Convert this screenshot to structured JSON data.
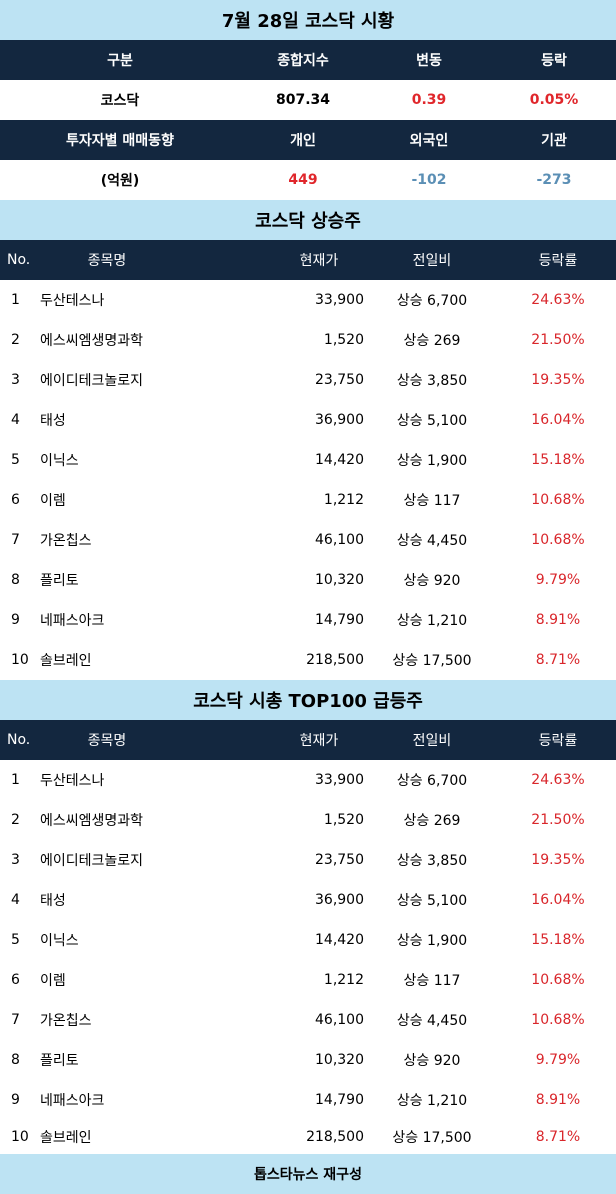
{
  "header": {
    "title": "7월 28일 코스닥 시황"
  },
  "summary": {
    "head": [
      "구분",
      "종합지수",
      "변동",
      "등락"
    ],
    "row": [
      "코스닥",
      "807.34",
      "0.39",
      "0.05%"
    ],
    "investor_head": [
      "투자자별 매매동향",
      "개인",
      "외국인",
      "기관"
    ],
    "investor_row": [
      "(억원)",
      "449",
      "-102",
      "-273"
    ]
  },
  "section1": {
    "title": "코스닥 상승주",
    "head": [
      "No.",
      "종목명",
      "현재가",
      "전일비",
      "등락률"
    ],
    "rows": [
      {
        "no": "1",
        "name": "두산테스나",
        "price": "33,900",
        "diff": "상승 6,700",
        "rate": "24.63%"
      },
      {
        "no": "2",
        "name": "에스씨엠생명과학",
        "price": "1,520",
        "diff": "상승 269",
        "rate": "21.50%"
      },
      {
        "no": "3",
        "name": "에이디테크놀로지",
        "price": "23,750",
        "diff": "상승 3,850",
        "rate": "19.35%"
      },
      {
        "no": "4",
        "name": "태성",
        "price": "36,900",
        "diff": "상승 5,100",
        "rate": "16.04%"
      },
      {
        "no": "5",
        "name": "이닉스",
        "price": "14,420",
        "diff": "상승 1,900",
        "rate": "15.18%"
      },
      {
        "no": "6",
        "name": "이렘",
        "price": "1,212",
        "diff": "상승 117",
        "rate": "10.68%"
      },
      {
        "no": "7",
        "name": "가온칩스",
        "price": "46,100",
        "diff": "상승 4,450",
        "rate": "10.68%"
      },
      {
        "no": "8",
        "name": "플리토",
        "price": "10,320",
        "diff": "상승 920",
        "rate": "9.79%"
      },
      {
        "no": "9",
        "name": "네패스아크",
        "price": "14,790",
        "diff": "상승 1,210",
        "rate": "8.91%"
      },
      {
        "no": "10",
        "name": "솔브레인",
        "price": "218,500",
        "diff": "상승 17,500",
        "rate": "8.71%"
      }
    ]
  },
  "section2": {
    "title": "코스닥 시총 TOP100 급등주",
    "head": [
      "No.",
      "종목명",
      "현재가",
      "전일비",
      "등락률"
    ],
    "rows": [
      {
        "no": "1",
        "name": "두산테스나",
        "price": "33,900",
        "diff": "상승 6,700",
        "rate": "24.63%"
      },
      {
        "no": "2",
        "name": "에스씨엠생명과학",
        "price": "1,520",
        "diff": "상승 269",
        "rate": "21.50%"
      },
      {
        "no": "3",
        "name": "에이디테크놀로지",
        "price": "23,750",
        "diff": "상승 3,850",
        "rate": "19.35%"
      },
      {
        "no": "4",
        "name": "태성",
        "price": "36,900",
        "diff": "상승 5,100",
        "rate": "16.04%"
      },
      {
        "no": "5",
        "name": "이닉스",
        "price": "14,420",
        "diff": "상승 1,900",
        "rate": "15.18%"
      },
      {
        "no": "6",
        "name": "이렘",
        "price": "1,212",
        "diff": "상승 117",
        "rate": "10.68%"
      },
      {
        "no": "7",
        "name": "가온칩스",
        "price": "46,100",
        "diff": "상승 4,450",
        "rate": "10.68%"
      },
      {
        "no": "8",
        "name": "플리토",
        "price": "10,320",
        "diff": "상승 920",
        "rate": "9.79%"
      },
      {
        "no": "9",
        "name": "네패스아크",
        "price": "14,790",
        "diff": "상승 1,210",
        "rate": "8.91%"
      },
      {
        "no": "10",
        "name": "솔브레인",
        "price": "218,500",
        "diff": "상승 17,500",
        "rate": "8.71%"
      }
    ]
  },
  "footer": {
    "credit": "톱스타뉴스 재구성"
  },
  "colors": {
    "dark_navy": "#13273f",
    "light_blue": "#bde3f3",
    "up_red": "#e0262b",
    "down_blue": "#5b8fb5"
  }
}
